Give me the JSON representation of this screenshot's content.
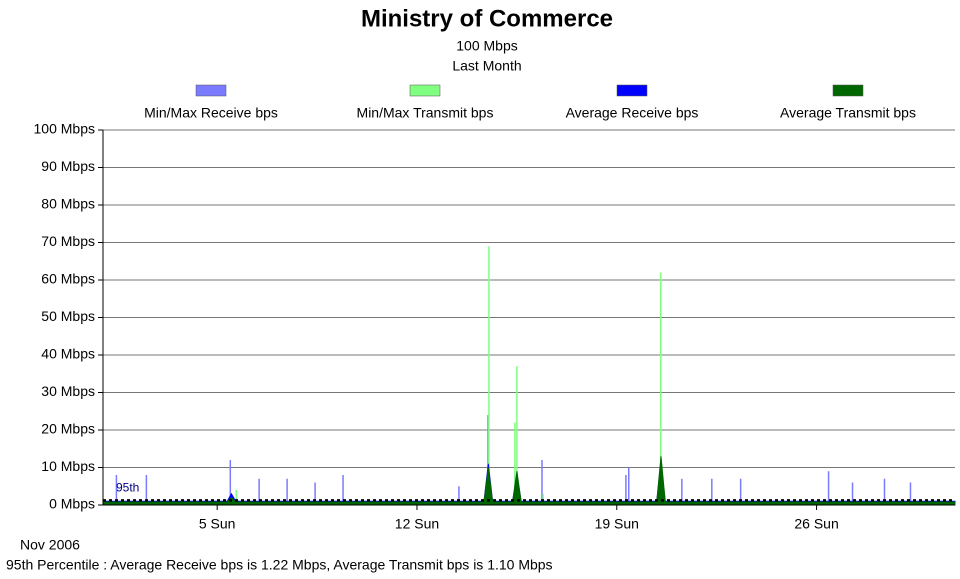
{
  "chart_data": {
    "type": "line",
    "title": "Ministry of Commerce",
    "subtitle": [
      "100 Mbps",
      "Last Month"
    ],
    "xlim": [
      1,
      30.85
    ],
    "xticks": [
      {
        "value": 5,
        "label": "5 Sun"
      },
      {
        "value": 12,
        "label": "12 Sun"
      },
      {
        "value": 19,
        "label": "19 Sun"
      },
      {
        "value": 26,
        "label": "26 Sun"
      }
    ],
    "ylim": [
      0,
      100
    ],
    "yticks": [
      {
        "value": 0,
        "label": "0 Mbps"
      },
      {
        "value": 10,
        "label": "10 Mbps"
      },
      {
        "value": 20,
        "label": "20 Mbps"
      },
      {
        "value": 30,
        "label": "30 Mbps"
      },
      {
        "value": 40,
        "label": "40 Mbps"
      },
      {
        "value": 50,
        "label": "50 Mbps"
      },
      {
        "value": 60,
        "label": "60 Mbps"
      },
      {
        "value": 70,
        "label": "70 Mbps"
      },
      {
        "value": 80,
        "label": "80 Mbps"
      },
      {
        "value": 90,
        "label": "90 Mbps"
      },
      {
        "value": 100,
        "label": "100 Mbps"
      }
    ],
    "grid": true,
    "series": [
      {
        "name": "Min/Max Receive bps",
        "color": "#7b7bff",
        "style": "spikes",
        "x": [
          1.47,
          2.52,
          5.46,
          6.47,
          7.45,
          8.43,
          9.41,
          13.47,
          14.49,
          15.43,
          16.38,
          19.32,
          19.42,
          21.28,
          22.33,
          23.34,
          26.42,
          27.26,
          28.38,
          29.29
        ],
        "values": [
          8,
          8,
          12,
          7,
          7,
          6,
          8,
          5,
          24,
          8,
          12,
          8,
          10,
          7,
          7,
          7,
          9,
          6,
          7,
          6
        ]
      },
      {
        "name": "Min/Max Transmit bps",
        "color": "#80ff80",
        "style": "spikes",
        "x": [
          5.67,
          14.52,
          15.43,
          15.5,
          16.42,
          20.54
        ],
        "values": [
          4,
          69,
          22,
          37,
          3,
          62
        ]
      },
      {
        "name": "Average Receive bps",
        "color": "#0000ff",
        "style": "area",
        "x": [
          1,
          5.35,
          5.5,
          5.65,
          14.35,
          14.5,
          14.65,
          15.35,
          15.5,
          15.65,
          20.4,
          20.55,
          20.7,
          30.85
        ],
        "values": [
          1,
          1,
          3,
          1,
          1,
          11,
          1,
          1,
          8,
          1,
          1,
          10,
          1,
          1
        ]
      },
      {
        "name": "Average Transmit bps",
        "color": "#006600",
        "style": "area",
        "x": [
          1,
          5.35,
          5.5,
          5.65,
          14.35,
          14.5,
          14.65,
          15.35,
          15.5,
          15.65,
          20.4,
          20.55,
          20.7,
          30.85
        ],
        "values": [
          0.8,
          0.8,
          2,
          0.8,
          0.8,
          10,
          0.8,
          0.8,
          9,
          0.8,
          0.8,
          13,
          0.8,
          0.8
        ]
      }
    ],
    "percentile": {
      "label": "95th",
      "value": 1.22
    },
    "footer": [
      "Nov 2006",
      "95th Percentile : Average Receive bps is 1.22 Mbps, Average Transmit bps is 1.10 Mbps"
    ]
  }
}
